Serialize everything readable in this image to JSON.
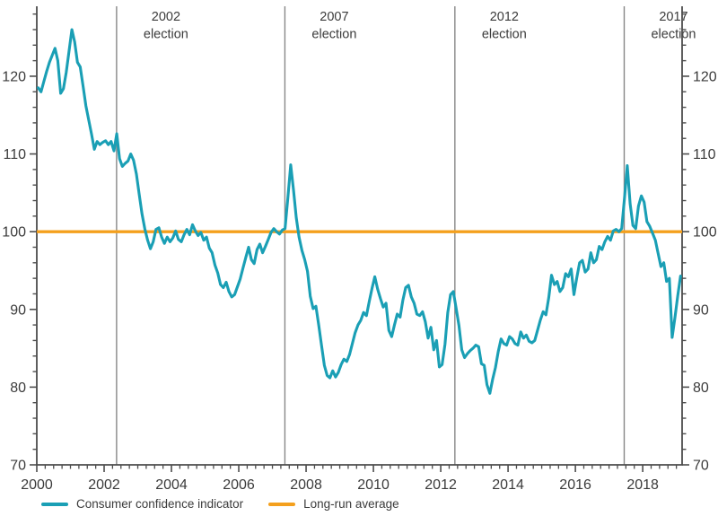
{
  "chart_data": {
    "type": "line",
    "title": "",
    "x_axis": {
      "tick_years": [
        2000,
        2002,
        2004,
        2006,
        2008,
        2010,
        2012,
        2014,
        2016,
        2018
      ],
      "minor_tick_step_years": 0.25,
      "range": [
        2000,
        2019.17
      ]
    },
    "y_axis": {
      "tick_values": [
        70,
        80,
        90,
        100,
        110,
        120
      ],
      "minor_tick_step": 2,
      "range": [
        70,
        129
      ],
      "mirrored_right": true
    },
    "election_markers": [
      {
        "year_position": 2002.37,
        "label_line1": "2002",
        "label_line2": "election"
      },
      {
        "year_position": 2007.37,
        "label_line1": "2007",
        "label_line2": "election"
      },
      {
        "year_position": 2012.42,
        "label_line1": "2012",
        "label_line2": "election"
      },
      {
        "year_position": 2017.45,
        "label_line1": "2017",
        "label_line2": "election"
      }
    ],
    "long_run_average_value": 100,
    "series": [
      {
        "name": "Consumer confidence indicator",
        "color": "#1A9FB5",
        "frequency": "monthly",
        "start": "2000-01",
        "end": "2019-02",
        "values": [
          118.5,
          118.0,
          119.3,
          120.6,
          121.8,
          122.7,
          123.6,
          122.0,
          117.8,
          118.4,
          120.5,
          123.2,
          126.0,
          124.4,
          121.8,
          121.2,
          118.7,
          116.2,
          114.4,
          112.6,
          110.6,
          111.6,
          111.2,
          111.5,
          111.7,
          111.2,
          111.6,
          110.4,
          112.6,
          109.4,
          108.4,
          108.8,
          109.1,
          110.0,
          109.2,
          107.4,
          104.8,
          102.3,
          100.4,
          98.9,
          97.8,
          98.7,
          100.3,
          100.5,
          99.3,
          98.5,
          99.3,
          98.7,
          99.2,
          100.1,
          99.0,
          98.7,
          99.6,
          100.3,
          99.6,
          100.9,
          100.1,
          99.5,
          99.9,
          98.9,
          99.3,
          97.9,
          97.3,
          95.7,
          94.7,
          93.2,
          92.8,
          93.5,
          92.3,
          91.6,
          91.9,
          92.9,
          93.9,
          95.3,
          96.7,
          98.0,
          96.4,
          95.9,
          97.7,
          98.4,
          97.3,
          98.1,
          99.0,
          99.9,
          100.4,
          100.0,
          99.7,
          100.2,
          100.4,
          104.3,
          108.6,
          105.4,
          101.8,
          99.3,
          97.6,
          96.4,
          94.9,
          91.7,
          90.1,
          90.4,
          88.0,
          85.4,
          82.8,
          81.5,
          81.2,
          82.1,
          81.3,
          81.9,
          82.9,
          83.6,
          83.3,
          84.2,
          85.6,
          87.0,
          88.0,
          88.6,
          89.6,
          89.2,
          91.0,
          92.7,
          94.2,
          92.6,
          91.4,
          90.3,
          90.8,
          87.3,
          86.5,
          88.0,
          89.4,
          89.0,
          91.2,
          92.8,
          93.1,
          91.6,
          90.8,
          89.4,
          89.2,
          89.7,
          88.4,
          86.3,
          87.7,
          84.8,
          86.0,
          82.6,
          82.9,
          85.5,
          89.6,
          91.9,
          92.3,
          90.1,
          87.9,
          84.8,
          83.8,
          84.3,
          84.7,
          85.0,
          85.4,
          85.2,
          83.0,
          82.8,
          80.3,
          79.2,
          81.0,
          82.5,
          84.6,
          86.2,
          85.6,
          85.4,
          86.5,
          86.2,
          85.6,
          85.4,
          87.1,
          86.3,
          86.7,
          85.9,
          85.7,
          86.0,
          87.3,
          88.6,
          89.7,
          89.3,
          91.5,
          94.4,
          93.2,
          93.6,
          92.3,
          92.8,
          94.6,
          94.2,
          95.2,
          91.9,
          94.1,
          96.0,
          96.3,
          94.8,
          95.2,
          97.3,
          96.0,
          96.4,
          98.1,
          97.7,
          98.7,
          99.4,
          98.9,
          100.1,
          100.3,
          100.0,
          100.4,
          104.3,
          108.5,
          103.6,
          100.8,
          100.4,
          103.3,
          104.6,
          103.8,
          101.3,
          100.7,
          99.8,
          98.9,
          97.2,
          95.5,
          96.0,
          93.6,
          94.0,
          86.4,
          89.0,
          91.8,
          94.3
        ]
      },
      {
        "name": "Long-run average",
        "color": "#F4A01D",
        "value": 100
      }
    ],
    "legend": {
      "position": "bottom-left",
      "items": [
        {
          "label": "Consumer confidence indicator",
          "color": "#1A9FB5"
        },
        {
          "label": "Long-run average",
          "color": "#F4A01D"
        }
      ]
    },
    "colors": {
      "confidence_line": "#1A9FB5",
      "average_line": "#F4A01D",
      "election_line": "#878787",
      "axis": "#4d4d4d",
      "text": "#3b3b3b",
      "background": "#ffffff"
    }
  }
}
